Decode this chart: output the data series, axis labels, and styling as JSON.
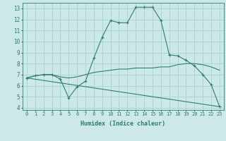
{
  "line1_x": [
    0,
    1,
    2,
    3,
    4,
    5,
    6,
    7,
    8,
    9,
    10,
    11,
    12,
    13,
    14,
    15,
    16,
    17,
    18,
    19,
    20,
    21,
    22,
    23
  ],
  "line1_y": [
    6.7,
    6.9,
    7.0,
    7.0,
    6.6,
    4.9,
    5.9,
    6.4,
    8.5,
    10.4,
    11.9,
    11.7,
    11.7,
    13.1,
    13.1,
    13.1,
    11.9,
    8.8,
    8.7,
    8.3,
    7.8,
    7.0,
    6.1,
    4.1
  ],
  "line2_x": [
    0,
    1,
    2,
    3,
    4,
    5,
    6,
    7,
    8,
    9,
    10,
    11,
    12,
    13,
    14,
    15,
    16,
    17,
    18,
    19,
    20,
    21,
    22,
    23
  ],
  "line2_y": [
    6.7,
    6.9,
    7.0,
    7.0,
    6.8,
    6.7,
    6.8,
    7.0,
    7.2,
    7.3,
    7.4,
    7.5,
    7.5,
    7.6,
    7.6,
    7.6,
    7.7,
    7.7,
    7.9,
    8.0,
    8.0,
    7.9,
    7.7,
    7.4
  ],
  "line3_x": [
    0,
    23
  ],
  "line3_y": [
    6.7,
    4.1
  ],
  "line_color": "#2e7d6e",
  "bg_color": "#cce8e8",
  "grid_color": "#b0d4d4",
  "xlabel": "Humidex (Indice chaleur)",
  "xlim": [
    -0.5,
    23.5
  ],
  "ylim": [
    3.8,
    13.5
  ],
  "yticks": [
    4,
    5,
    6,
    7,
    8,
    9,
    10,
    11,
    12,
    13
  ],
  "xticks": [
    0,
    1,
    2,
    3,
    4,
    5,
    6,
    7,
    8,
    9,
    10,
    11,
    12,
    13,
    14,
    15,
    16,
    17,
    18,
    19,
    20,
    21,
    22,
    23
  ],
  "xtick_labels": [
    "0",
    "1",
    "2",
    "3",
    "4",
    "5",
    "6",
    "7",
    "8",
    "9",
    "10",
    "11",
    "12",
    "13",
    "14",
    "15",
    "16",
    "17",
    "18",
    "19",
    "20",
    "21",
    "22",
    "23"
  ]
}
